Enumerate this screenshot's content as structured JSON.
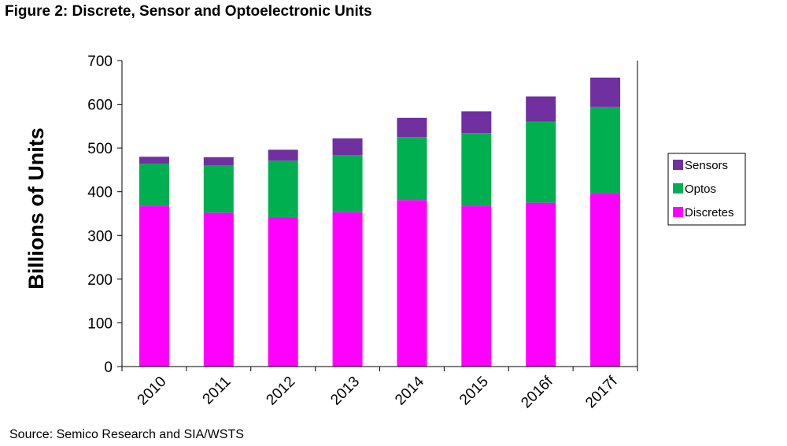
{
  "figure": {
    "title": "Figure 2:  Discrete, Sensor and Optoelectronic Units",
    "source": "Source:  Semico Research and SIA/WSTS"
  },
  "chart_data": {
    "type": "bar",
    "stacked": true,
    "categories": [
      "2010",
      "2011",
      "2012",
      "2013",
      "2014",
      "2015",
      "2016f",
      "2017f"
    ],
    "series": [
      {
        "name": "Discretes",
        "color": "#ff00ff",
        "values": [
          367,
          352,
          341,
          353,
          381,
          367,
          375,
          397
        ]
      },
      {
        "name": "Optos",
        "color": "#00b050",
        "values": [
          97,
          108,
          130,
          131,
          144,
          167,
          185,
          197
        ]
      },
      {
        "name": "Sensors",
        "color": "#7030a0",
        "values": [
          16,
          19,
          25,
          38,
          44,
          50,
          58,
          67
        ]
      }
    ],
    "xlabel": "",
    "ylabel": "Billions of Units",
    "ylim": [
      0,
      700
    ],
    "yticks": [
      0,
      100,
      200,
      300,
      400,
      500,
      600,
      700
    ],
    "grid": false,
    "legend": {
      "position": "right",
      "order": [
        "Sensors",
        "Optos",
        "Discretes"
      ]
    }
  }
}
